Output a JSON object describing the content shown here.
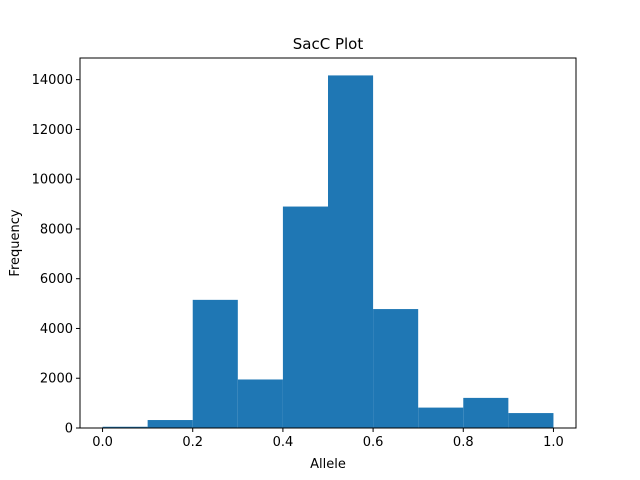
{
  "chart_data": {
    "type": "bar",
    "title": "SacC Plot",
    "xlabel": "Allele",
    "ylabel": "Frequency",
    "xlim": [
      -0.05,
      1.05
    ],
    "ylim": [
      0,
      14870
    ],
    "grid": false,
    "color": "#1f77b4",
    "x_ticks": [
      0.0,
      0.2,
      0.4,
      0.6,
      0.8,
      1.0
    ],
    "x_tick_labels": [
      "0.0",
      "0.2",
      "0.4",
      "0.6",
      "0.8",
      "1.0"
    ],
    "y_ticks": [
      0,
      2000,
      4000,
      6000,
      8000,
      10000,
      12000,
      14000
    ],
    "y_tick_labels": [
      "0",
      "2000",
      "4000",
      "6000",
      "8000",
      "10000",
      "12000",
      "14000"
    ],
    "bin_edges": [
      0.0,
      0.1,
      0.2,
      0.3,
      0.4,
      0.5,
      0.6,
      0.7,
      0.8,
      0.9,
      1.0
    ],
    "values": [
      50,
      320,
      5150,
      1950,
      8900,
      14170,
      4780,
      820,
      1210,
      600
    ]
  }
}
